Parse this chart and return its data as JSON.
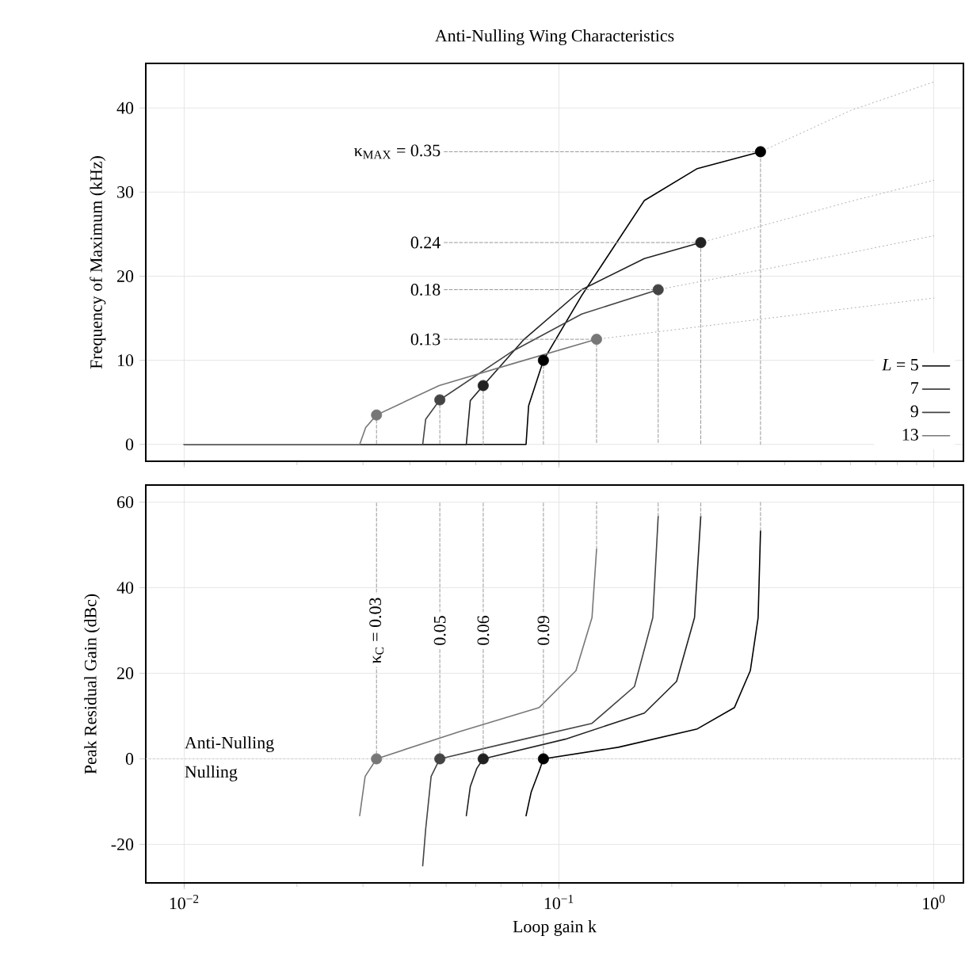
{
  "chart_data": [
    {
      "type": "line",
      "title": "Anti-Nulling Wing Characteristics",
      "ylabel": "Frequency of Maximum (kHz)",
      "log": "x",
      "grid": true,
      "legend": "bottom right",
      "tick_labels": "y",
      "xlim": [
        0.0079,
        1.2
      ],
      "xticks": [
        {
          "value": 0.01,
          "label": null
        },
        {
          "value": 0.1,
          "label": null
        },
        {
          "value": 1,
          "label": null
        }
      ],
      "ylim": [
        -2,
        45.3
      ],
      "yticks": [
        0,
        10,
        20,
        30,
        40
      ],
      "series": [
        {
          "name": "*L* = 5",
          "color": "#000000",
          "x": [
            0.01,
            0.0817,
            0.083,
            0.0909,
            0.115,
            0.169,
            0.234,
            0.345
          ],
          "values": [
            0,
            0,
            4.6,
            10.0,
            17.7,
            29.0,
            32.8,
            34.8
          ]
        },
        {
          "name": "7",
          "color": "#222222",
          "x": [
            0.01,
            0.0566,
            0.058,
            0.0628,
            0.0803,
            0.115,
            0.169,
            0.239
          ],
          "values": [
            0,
            0,
            5.2,
            7.0,
            12.4,
            18.4,
            22.1,
            24.0
          ]
        },
        {
          "name": "9",
          "color": "#444444",
          "x": [
            0.01,
            0.0433,
            0.0441,
            0.0481,
            0.0753,
            0.115,
            0.184
          ],
          "values": [
            0,
            0,
            3.0,
            5.3,
            11.1,
            15.5,
            18.4
          ]
        },
        {
          "name": "13",
          "color": "#777777",
          "x": [
            0.01,
            0.0294,
            0.0305,
            0.0326,
            0.0479,
            0.0753,
            0.126
          ],
          "values": [
            0,
            0,
            2.0,
            3.5,
            7.0,
            9.6,
            12.5
          ]
        },
        {
          "line_style": "dotted",
          "color": "#aaaaaa",
          "x": [
            0.345,
            0.6,
            1
          ],
          "values": [
            34.8,
            39.7,
            43.1
          ]
        },
        {
          "line_style": "dotted",
          "color": "#aaaaaa",
          "x": [
            0.239,
            0.6,
            1
          ],
          "values": [
            24.0,
            28.9,
            31.4
          ]
        },
        {
          "line_style": "dotted",
          "color": "#aaaaaa",
          "x": [
            0.184,
            0.6,
            1
          ],
          "values": [
            18.4,
            22.8,
            24.8
          ]
        },
        {
          "line_style": "dotted",
          "color": "#aaaaaa",
          "x": [
            0.126,
            0.6,
            1
          ],
          "values": [
            12.5,
            16.2,
            17.4
          ]
        },
        {
          "line_style": "dashed",
          "color": "#999999",
          "x": [
            0.0494,
            0.345,
            0.345
          ],
          "values": [
            34.8,
            34.8,
            0
          ]
        },
        {
          "line_style": "dashed",
          "color": "#999999",
          "x": [
            0.0494,
            0.239,
            0.239
          ],
          "values": [
            24.0,
            24.0,
            0
          ]
        },
        {
          "line_style": "dashed",
          "color": "#999999",
          "x": [
            0.0494,
            0.184,
            0.184
          ],
          "values": [
            18.4,
            18.4,
            0
          ]
        },
        {
          "line_style": "dashed",
          "color": "#999999",
          "x": [
            0.0494,
            0.126,
            0.126
          ],
          "values": [
            12.5,
            12.5,
            0
          ]
        },
        {
          "line_style": "dashed",
          "color": "#999999",
          "x": [
            0.0909,
            0.0909
          ],
          "values": [
            10.0,
            0
          ]
        },
        {
          "line_style": "dashed",
          "color": "#999999",
          "x": [
            0.0628,
            0.0628
          ],
          "values": [
            7.0,
            0
          ]
        },
        {
          "line_style": "dashed",
          "color": "#999999",
          "x": [
            0.0481,
            0.0481
          ],
          "values": [
            5.3,
            0
          ]
        },
        {
          "line_style": "dashed",
          "color": "#999999",
          "x": [
            0.0326,
            0.0326
          ],
          "values": [
            3.5,
            0
          ]
        },
        {
          "type": "scatter",
          "marker": "circle",
          "x": [
            0.345,
            0.239,
            0.184,
            0.126,
            0.0909,
            0.0628,
            0.0481,
            0.0326
          ],
          "values": [
            34.8,
            24.0,
            18.4,
            12.5,
            10.0,
            7.0,
            5.3,
            3.5
          ],
          "colors": [
            "#000000",
            "#222222",
            "#444444",
            "#777777",
            "#000000",
            "#222222",
            "#444444",
            "#777777"
          ]
        }
      ],
      "annotations": [
        {
          "text": "κ$_{MAX}$ = 0.35",
          "x": 0.0494,
          "y": 34.8
        },
        {
          "text": "0.24",
          "x": 0.0494,
          "y": 24.0
        },
        {
          "text": "0.18",
          "x": 0.0494,
          "y": 18.4
        },
        {
          "text": "0.13",
          "x": 0.0494,
          "y": 12.5
        }
      ]
    },
    {
      "type": "line",
      "xlabel": "Loop gain k",
      "ylabel": "Peak Residual Gain (dBc)",
      "log": "x",
      "grid": true,
      "xlim": [
        0.0079,
        1.2
      ],
      "xticks": [
        {
          "value": 0.01,
          "label": "10$^{−2}$"
        },
        {
          "value": 0.1,
          "label": "10$^{−1}$"
        },
        {
          "value": 1,
          "label": "10$^{0}$"
        }
      ],
      "ylim": [
        -29,
        64
      ],
      "yticks": [
        -20,
        0,
        20,
        40,
        60
      ],
      "ref_lines": [
        {
          "axis": "y",
          "value": 0,
          "color": "#aaaaaa",
          "line_style": "dotted"
        }
      ],
      "series": [
        {
          "color": "#000000",
          "x": [
            0.0817,
            0.0843,
            0.0886,
            0.0909,
            0.144,
            0.234,
            0.294,
            0.324,
            0.34,
            0.345
          ],
          "values": [
            -13.3,
            -7.8,
            -2.8,
            0,
            2.7,
            7.0,
            12,
            20.6,
            33,
            53.3
          ]
        },
        {
          "color": "#222222",
          "x": [
            0.0566,
            0.058,
            0.0604,
            0.0628,
            0.104,
            0.169,
            0.206,
            0.23,
            0.239
          ],
          "values": [
            -13.3,
            -6.5,
            -2.2,
            0,
            4.6,
            10.7,
            18.1,
            33,
            56.7
          ]
        },
        {
          "color": "#444444",
          "x": [
            0.0433,
            0.0441,
            0.0456,
            0.0481,
            0.0753,
            0.1225,
            0.159,
            0.178,
            0.184
          ],
          "values": [
            -25,
            -16.4,
            -4.1,
            0,
            4,
            8.3,
            16.9,
            33,
            56.7
          ]
        },
        {
          "color": "#777777",
          "x": [
            0.0294,
            0.0304,
            0.0326,
            0.0544,
            0.0886,
            0.111,
            0.1225,
            0.126
          ],
          "values": [
            -13.3,
            -4.1,
            0,
            6.4,
            12,
            20.6,
            33,
            49
          ]
        },
        {
          "line_style": "dashed",
          "color": "#999999",
          "x": [
            0.0326,
            0.0326
          ],
          "values": [
            0,
            60
          ]
        },
        {
          "line_style": "dashed",
          "color": "#999999",
          "x": [
            0.0481,
            0.0481
          ],
          "values": [
            0,
            60
          ]
        },
        {
          "line_style": "dashed",
          "color": "#999999",
          "x": [
            0.0628,
            0.0628
          ],
          "values": [
            0,
            60
          ]
        },
        {
          "line_style": "dashed",
          "color": "#999999",
          "x": [
            0.0909,
            0.0909
          ],
          "values": [
            0,
            60
          ]
        },
        {
          "line_style": "dashed",
          "color": "#999999",
          "x": [
            0.126,
            0.126
          ],
          "values": [
            49,
            60
          ]
        },
        {
          "line_style": "dashed",
          "color": "#999999",
          "x": [
            0.184,
            0.184
          ],
          "values": [
            56.7,
            60
          ]
        },
        {
          "line_style": "dashed",
          "color": "#999999",
          "x": [
            0.239,
            0.239
          ],
          "values": [
            56.7,
            60
          ]
        },
        {
          "line_style": "dashed",
          "color": "#999999",
          "x": [
            0.345,
            0.345
          ],
          "values": [
            53.3,
            60
          ]
        },
        {
          "type": "scatter",
          "marker": "circle",
          "x": [
            0.0326,
            0.0481,
            0.0628,
            0.0909
          ],
          "values": [
            0,
            0,
            0,
            0
          ],
          "colors": [
            "#777777",
            "#444444",
            "#222222",
            "#000000"
          ]
        }
      ],
      "annotations": [
        {
          "text": "κ$_{C}$ = 0.03",
          "x": 0.0326,
          "y": 30
        },
        {
          "text": "0.05",
          "x": 0.0481,
          "y": 30
        },
        {
          "text": "0.06",
          "x": 0.0628,
          "y": 30
        },
        {
          "text": "0.09",
          "x": 0.0909,
          "y": 30
        },
        "Anti-Nulling",
        "Nulling"
      ]
    }
  ]
}
